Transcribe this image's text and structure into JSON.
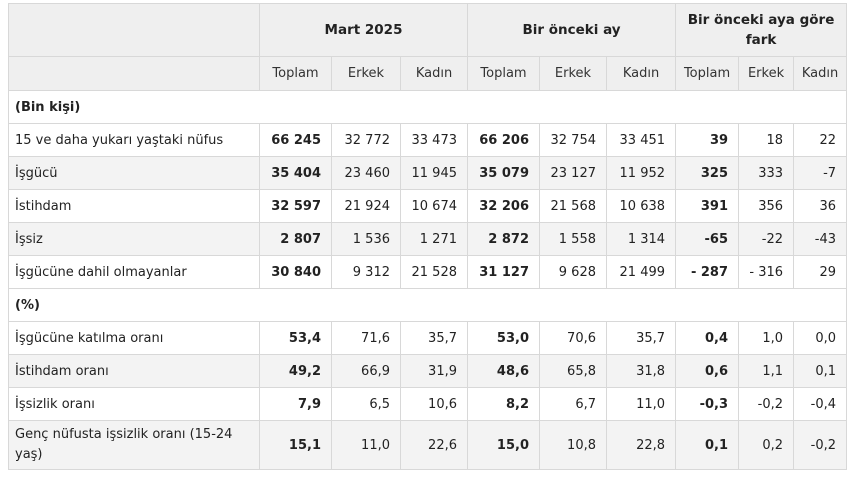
{
  "header": {
    "groups": [
      "Mart 2025",
      "Bir önceki ay",
      "Bir önceki aya göre fark"
    ],
    "sub": [
      "Toplam",
      "Erkek",
      "Kadın"
    ]
  },
  "sections": [
    {
      "title": "(Bin kişi)",
      "rows": [
        {
          "label": "15 ve daha yukarı yaştaki nüfus",
          "values": [
            "66 245",
            "32 772",
            "33 473",
            "66 206",
            "32 754",
            "33 451",
            "39",
            "18",
            "22"
          ]
        },
        {
          "label": "İşgücü",
          "values": [
            "35 404",
            "23 460",
            "11 945",
            "35 079",
            "23 127",
            "11 952",
            "325",
            "333",
            "-7"
          ]
        },
        {
          "label": "İstihdam",
          "values": [
            "32 597",
            "21 924",
            "10 674",
            "32 206",
            "21 568",
            "10 638",
            "391",
            "356",
            "36"
          ]
        },
        {
          "label": "İşsiz",
          "values": [
            "2 807",
            "1 536",
            "1 271",
            "2 872",
            "1 558",
            "1 314",
            "-65",
            "-22",
            "-43"
          ]
        },
        {
          "label": "İşgücüne dahil olmayanlar",
          "values": [
            "30 840",
            "9 312",
            "21 528",
            "31 127",
            "9 628",
            "21 499",
            "- 287",
            "- 316",
            "29"
          ]
        }
      ]
    },
    {
      "title": "(%)",
      "rows": [
        {
          "label": "İşgücüne katılma oranı",
          "values": [
            "53,4",
            "71,6",
            "35,7",
            "53,0",
            "70,6",
            "35,7",
            "0,4",
            "1,0",
            "0,0"
          ]
        },
        {
          "label": "İstihdam oranı",
          "values": [
            "49,2",
            "66,9",
            "31,9",
            "48,6",
            "65,8",
            "31,8",
            "0,6",
            "1,1",
            "0,1"
          ]
        },
        {
          "label": "İşsizlik oranı",
          "values": [
            "7,9",
            "6,5",
            "10,6",
            "8,2",
            "6,7",
            "11,0",
            "-0,3",
            "-0,2",
            "-0,4"
          ]
        },
        {
          "label": "Genç nüfusta işsizlik oranı (15-24 yaş)",
          "values": [
            "15,1",
            "11,0",
            "22,6",
            "15,0",
            "10,8",
            "22,8",
            "0,1",
            "0,2",
            "-0,2"
          ]
        }
      ]
    }
  ]
}
